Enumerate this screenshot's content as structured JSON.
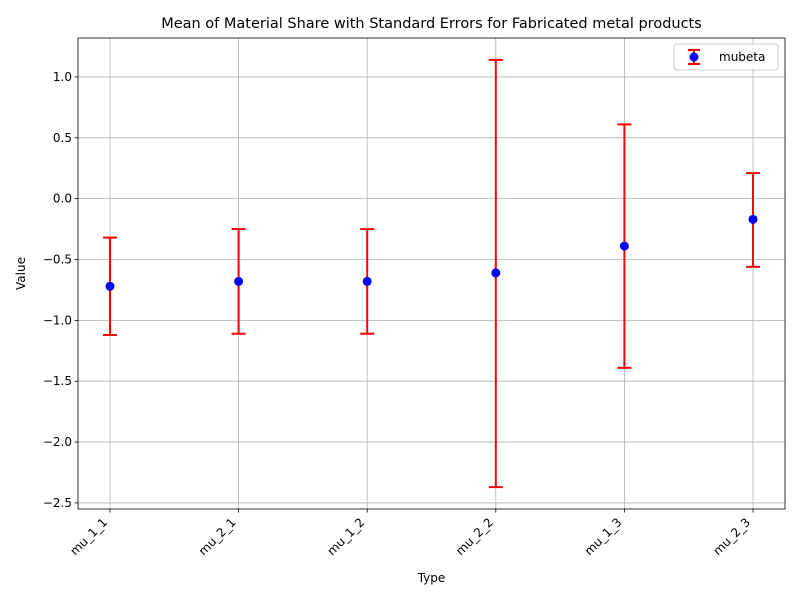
{
  "chart_data": {
    "type": "scatter",
    "title": "Mean of Material Share with Standard Errors for Fabricated metal products",
    "xlabel": "Type",
    "ylabel": "Value",
    "categories": [
      "mu_1_1",
      "mu_2_1",
      "mu_1_2",
      "mu_2_2",
      "mu_1_3",
      "mu_2_3"
    ],
    "series": [
      {
        "name": "mubeta",
        "values": [
          -0.72,
          -0.68,
          -0.68,
          -0.61,
          -0.39,
          -0.17
        ],
        "error_low": [
          -1.12,
          -1.11,
          -1.11,
          -2.37,
          -1.39,
          -0.56
        ],
        "error_high": [
          -0.32,
          -0.25,
          -0.25,
          1.14,
          0.61,
          0.21
        ]
      }
    ],
    "ylim": [
      -2.55,
      1.32
    ],
    "yticks": [
      -2.5,
      -2.0,
      -1.5,
      -1.0,
      -0.5,
      0.0,
      0.5,
      1.0
    ],
    "ytick_labels": [
      "−2.5",
      "−2.0",
      "−1.5",
      "−1.0",
      "−0.5",
      "0.0",
      "0.5",
      "1.0"
    ],
    "grid": true,
    "legend_position": "top-right",
    "colors": {
      "marker": "#0000ff",
      "errorbar": "#ff0000",
      "grid": "#b0b0b0"
    }
  }
}
